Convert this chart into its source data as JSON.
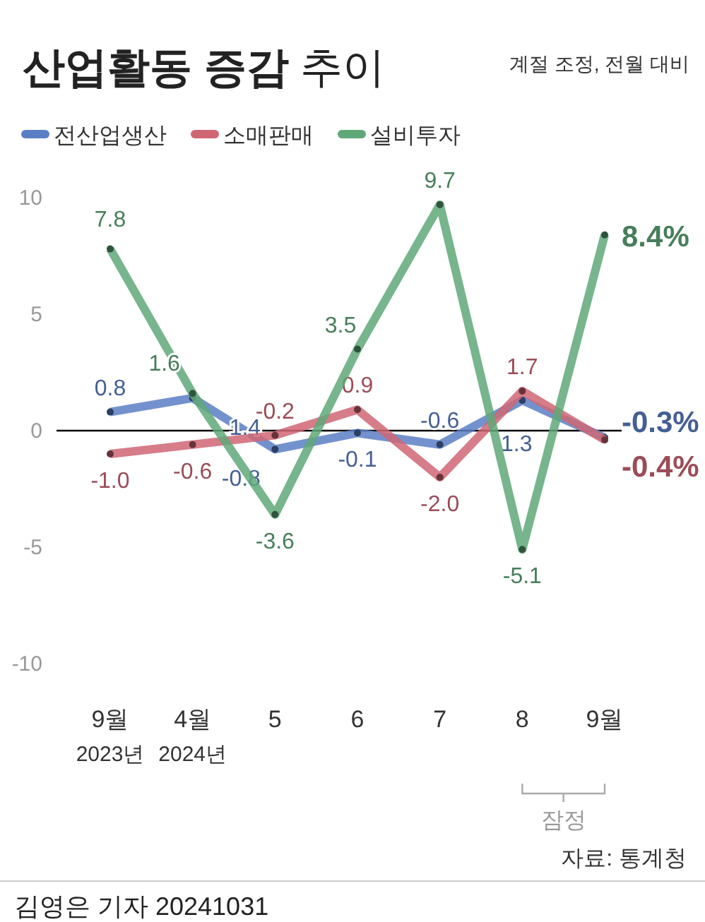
{
  "chart_data": {
    "type": "line",
    "title": "**산업활동 증감** 추이",
    "subtitle": "계절 조정, 전월 대비",
    "categories": [
      "9월\n2023년",
      "4월\n2024년",
      "5",
      "6",
      "7",
      "8",
      "9월"
    ],
    "series": [
      {
        "name": "전산업생산",
        "color": "#5b7fc4",
        "values": [
          0.8,
          1.4,
          -0.8,
          -0.1,
          -0.6,
          1.3,
          -0.3
        ],
        "value_labels": [
          "0.8",
          "1.4",
          "-0.8",
          "-0.1",
          "-0.6",
          "1.3",
          "-0.3%"
        ]
      },
      {
        "name": "소매판매",
        "color": "#cf6674",
        "values": [
          -1.0,
          -0.6,
          -0.2,
          0.9,
          -2.0,
          1.7,
          -0.4
        ],
        "value_labels": [
          "-1.0",
          "-0.6",
          "-0.2",
          "0.9",
          "-2.0",
          "1.7",
          "-0.4%"
        ]
      },
      {
        "name": "설비투자",
        "color": "#5fa878",
        "values": [
          7.8,
          1.6,
          -3.6,
          3.5,
          9.7,
          -5.1,
          8.4
        ],
        "value_labels": [
          "7.8",
          "1.6",
          "-3.6",
          "3.5",
          "9.7",
          "-5.1",
          "8.4%"
        ]
      }
    ],
    "ylim": [
      -10,
      10
    ],
    "yticks": [
      -10,
      -5,
      0,
      5,
      10
    ],
    "ref_lines": [
      {
        "axis": "y",
        "value": 0,
        "color": "#000000"
      }
    ],
    "legend": "top left",
    "marker": "circle",
    "line_style": "solid",
    "grid": false,
    "annotations": [
      "잠정",
      "자료: 통계청",
      "김영은 기자 20241031"
    ]
  }
}
